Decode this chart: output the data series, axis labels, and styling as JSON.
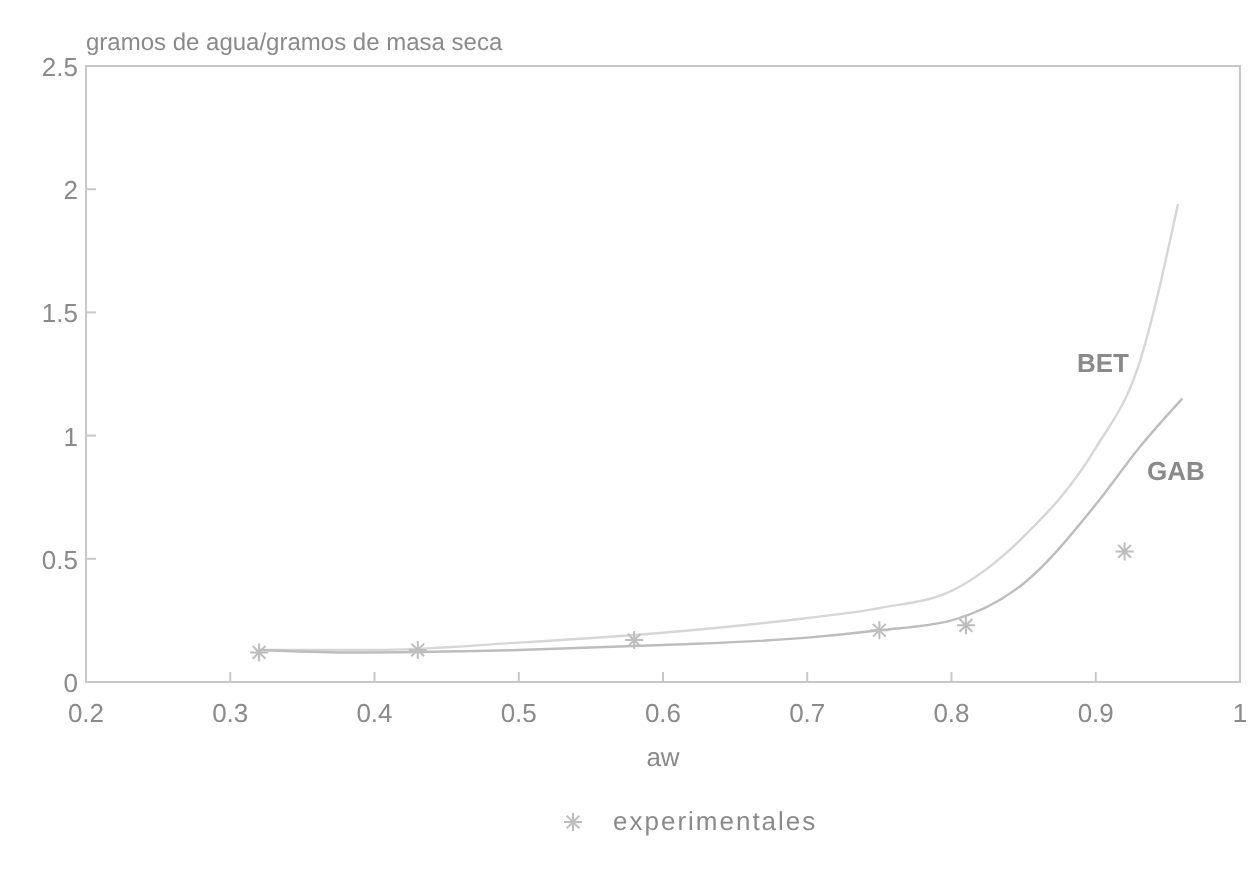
{
  "chart_data": {
    "type": "line",
    "ylabel": "gramos de agua/gramos de masa seca",
    "xlabel": "aw",
    "xlim": [
      0.2,
      1
    ],
    "xticks": [
      0.2,
      0.3,
      0.4,
      0.5,
      0.6,
      0.7,
      0.8,
      0.9,
      1
    ],
    "ylim": [
      0,
      2.5
    ],
    "yticks": [
      0,
      0.5,
      1,
      1.5,
      2,
      2.5
    ],
    "grid": false,
    "legend": "bottom",
    "series": [
      {
        "name": "BET",
        "color": "#d6d6d6",
        "marker": "none",
        "x": [
          0.32,
          0.4,
          0.5,
          0.6,
          0.7,
          0.75,
          0.8,
          0.85,
          0.9,
          0.93,
          0.957
        ],
        "values": [
          0.13,
          0.13,
          0.16,
          0.2,
          0.26,
          0.3,
          0.37,
          0.59,
          0.95,
          1.29,
          1.94
        ]
      },
      {
        "name": "GAB",
        "color": "#bdbdbd",
        "marker": "none",
        "x": [
          0.32,
          0.38,
          0.5,
          0.6,
          0.7,
          0.75,
          0.8,
          0.85,
          0.9,
          0.93,
          0.96
        ],
        "values": [
          0.13,
          0.12,
          0.13,
          0.15,
          0.18,
          0.21,
          0.25,
          0.4,
          0.72,
          0.95,
          1.15
        ]
      },
      {
        "name": "experimentales",
        "type": "scatter",
        "color": "#bdbdbd",
        "marker": "cross",
        "x": [
          0.32,
          0.43,
          0.58,
          0.75,
          0.81,
          0.92
        ],
        "values": [
          0.12,
          0.13,
          0.17,
          0.21,
          0.23,
          0.53
        ]
      }
    ]
  }
}
